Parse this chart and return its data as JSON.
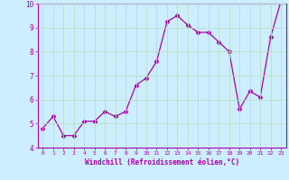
{
  "xlabel": "Windchill (Refroidissement éolien,°C)",
  "x_values": [
    0,
    1,
    2,
    3,
    4,
    5,
    6,
    7,
    8,
    9,
    10,
    11,
    12,
    13,
    14,
    15,
    16,
    17,
    18,
    19,
    20,
    21,
    22,
    23
  ],
  "y_values": [
    4.8,
    5.3,
    4.5,
    4.5,
    5.1,
    5.1,
    5.5,
    5.3,
    5.5,
    6.6,
    6.9,
    7.6,
    9.25,
    9.5,
    9.1,
    8.8,
    8.8,
    8.4,
    8.0,
    5.6,
    6.35,
    6.1,
    8.6,
    10.1
  ],
  "line_color": "#aa00aa",
  "marker": "D",
  "marker_size": 2.5,
  "bg_color": "#cceeff",
  "grid_color": "#bbddcc",
  "ylim": [
    4,
    10
  ],
  "xlim_min": -0.5,
  "xlim_max": 23.5,
  "yticks": [
    4,
    5,
    6,
    7,
    8,
    9,
    10
  ],
  "xticks": [
    0,
    1,
    2,
    3,
    4,
    5,
    6,
    7,
    8,
    9,
    10,
    11,
    12,
    13,
    14,
    15,
    16,
    17,
    18,
    19,
    20,
    21,
    22,
    23
  ],
  "tick_color": "#aa00aa",
  "label_color": "#aa00aa",
  "spine_color": "#aa00aa",
  "tick_fontsize": 4.5,
  "ytick_fontsize": 5.5,
  "xlabel_fontsize": 5.5
}
